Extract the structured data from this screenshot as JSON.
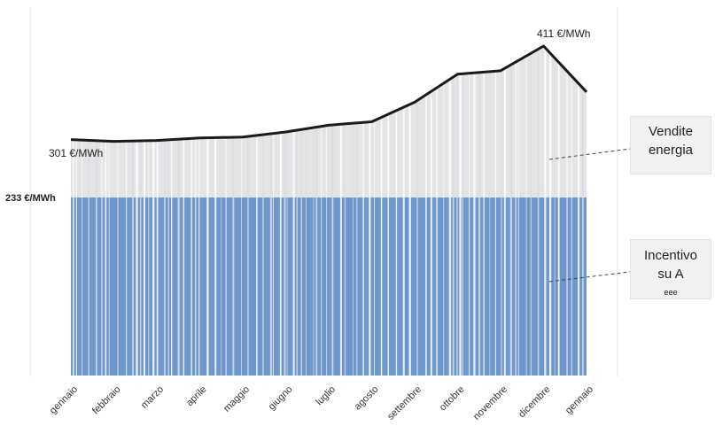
{
  "chart_data": {
    "type": "area",
    "categories": [
      "gennaio",
      "febbraio",
      "marzo",
      "aprile",
      "maggio",
      "giugno",
      "luglio",
      "agosto",
      "settembre",
      "ottobre",
      "novembre",
      "dicembre",
      "gennaio"
    ],
    "series": [
      {
        "values": [
          301,
          299,
          300,
          303,
          304,
          310,
          318,
          322,
          345,
          378,
          382,
          411,
          357
        ]
      }
    ],
    "incentive_level": 233,
    "incentive_label": "233 €/MWh",
    "start_label": "301 €/MWh",
    "peak_label": "411 €/MWh",
    "ylim": [
      0,
      420
    ],
    "grid": false,
    "colors": {
      "incentive": "#6e97cc",
      "energy": "#e4e4e4",
      "line": "#1a1a1a"
    }
  },
  "callouts": {
    "energy": {
      "line1": "Vendite",
      "line2": "energia"
    },
    "incentive": {
      "line1": "Incentivo",
      "line2_prefix": "su A",
      "line2_sub": "eee"
    }
  }
}
